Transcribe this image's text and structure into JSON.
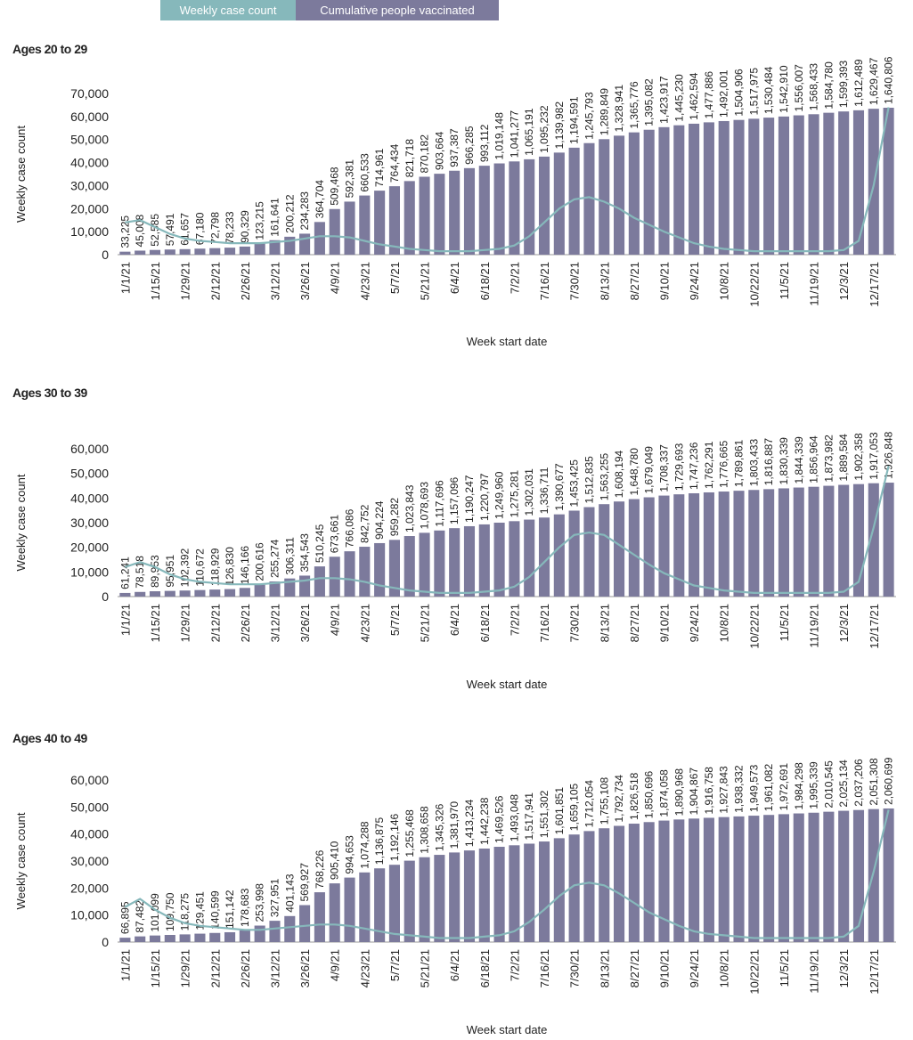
{
  "chart_data": [
    {
      "type": "bar",
      "title": "Ages 20 to 29",
      "x_label": "Week start date",
      "y_label": "Weekly case count",
      "categories": [
        "1/1/21",
        null,
        "1/15/21",
        null,
        "1/29/21",
        null,
        "2/12/21",
        null,
        "2/26/21",
        null,
        "3/12/21",
        null,
        "3/26/21",
        null,
        "4/9/21",
        null,
        "4/23/21",
        null,
        "5/7/21",
        null,
        "5/21/21",
        null,
        "6/4/21",
        null,
        "6/18/21",
        null,
        "7/2/21",
        null,
        "7/16/21",
        null,
        "7/30/21",
        null,
        "8/13/21",
        null,
        "8/27/21",
        null,
        "9/10/21",
        null,
        "9/24/21",
        null,
        "10/8/21",
        null,
        "10/22/21",
        null,
        "11/5/21",
        null,
        "11/19/21",
        null,
        "12/3/21",
        null,
        "12/17/21",
        null
      ],
      "ylim": [
        0,
        70000
      ],
      "yticks": [
        0,
        {
          "value": 10000,
          "label": "10,000"
        },
        {
          "value": 20000,
          "label": "20,000"
        },
        {
          "value": 30000,
          "label": "30,000"
        },
        {
          "value": 40000,
          "label": "40,000"
        },
        {
          "value": 50000,
          "label": "50,000"
        },
        {
          "value": 60000,
          "label": "60,000"
        },
        {
          "value": 70000,
          "label": "70,000"
        }
      ],
      "y2lim": [
        0,
        1800000
      ],
      "series": [
        {
          "name": "Weekly case count",
          "type": "line",
          "color": "#86b8bb",
          "values": [
            14000,
            15000,
            12000,
            9000,
            7000,
            6000,
            5500,
            5000,
            5000,
            5000,
            5500,
            6000,
            7000,
            8000,
            8000,
            7500,
            6000,
            4500,
            3500,
            2500,
            2000,
            1500,
            1500,
            1500,
            2000,
            2500,
            4000,
            8000,
            14000,
            20000,
            24000,
            25000,
            23000,
            20000,
            16000,
            13000,
            10000,
            7500,
            5000,
            3500,
            2500,
            2000,
            1500,
            1500,
            1500,
            1500,
            1500,
            1500,
            2000,
            6000,
            30000,
            64000
          ]
        },
        {
          "name": "Cumulative people vaccinated",
          "type": "bar",
          "axis": "y2",
          "color": "#7c7a9c",
          "values": [
            33225,
            45008,
            52585,
            57491,
            61657,
            67180,
            72798,
            78233,
            90329,
            123215,
            161641,
            200212,
            234283,
            364704,
            509468,
            592381,
            660533,
            714961,
            764434,
            821718,
            870182,
            903664,
            937387,
            966285,
            993112,
            1019148,
            1041277,
            1065191,
            1095232,
            1139982,
            1194591,
            1245793,
            1289849,
            1328941,
            1365776,
            1395082,
            1423917,
            1445230,
            1462594,
            1477886,
            1492001,
            1504906,
            1517975,
            1530484,
            1542910,
            1556007,
            1568433,
            1584780,
            1599393,
            1612489,
            1629467,
            1640806
          ],
          "value_labels": [
            "33,225",
            "45,008",
            "52,585",
            "57,491",
            "61,657",
            "67,180",
            "72,798",
            "78,233",
            "90,329",
            "123,215",
            "161,641",
            "200,212",
            "234,283",
            "364,704",
            "509,468",
            "592,381",
            "660,533",
            "714,961",
            "764,434",
            "821,718",
            "870,182",
            "903,664",
            "937,387",
            "966,285",
            "993,112",
            "1,019,148",
            "1,041,277",
            "1,065,191",
            "1,095,232",
            "1,139,982",
            "1,194,591",
            "1,245,793",
            "1,289,849",
            "1,328,941",
            "1,365,776",
            "1,395,082",
            "1,423,917",
            "1,445,230",
            "1,462,594",
            "1,477,886",
            "1,492,001",
            "1,504,906",
            "1,517,975",
            "1,530,484",
            "1,542,910",
            "1,556,007",
            "1,568,433",
            "1,584,780",
            "1,599,393",
            "1,612,489",
            "1,629,467",
            "1,640,806"
          ]
        }
      ]
    },
    {
      "type": "bar",
      "title": "Ages 30 to 39",
      "x_label": "Week start date",
      "y_label": "Weekly case count",
      "categories": [
        "1/1/21",
        null,
        "1/15/21",
        null,
        "1/29/21",
        null,
        "2/12/21",
        null,
        "2/26/21",
        null,
        "3/12/21",
        null,
        "3/26/21",
        null,
        "4/9/21",
        null,
        "4/23/21",
        null,
        "5/7/21",
        null,
        "5/21/21",
        null,
        "6/4/21",
        null,
        "6/18/21",
        null,
        "7/2/21",
        null,
        "7/16/21",
        null,
        "7/30/21",
        null,
        "8/13/21",
        null,
        "8/27/21",
        null,
        "9/10/21",
        null,
        "9/24/21",
        null,
        "10/8/21",
        null,
        "10/22/21",
        null,
        "11/5/21",
        null,
        "11/19/21",
        null,
        "12/3/21",
        null,
        "12/17/21",
        null
      ],
      "ylim": [
        0,
        60000
      ],
      "yticks": [
        0,
        {
          "value": 10000,
          "label": "10,000"
        },
        {
          "value": 20000,
          "label": "20,000"
        },
        {
          "value": 30000,
          "label": "30,000"
        },
        {
          "value": 40000,
          "label": "40,000"
        },
        {
          "value": 50000,
          "label": "50,000"
        },
        {
          "value": 60000,
          "label": "60,000"
        }
      ],
      "y2lim": [
        0,
        2500000
      ],
      "series": [
        {
          "type": "line",
          "color": "#86b8bb",
          "values": [
            12000,
            14000,
            12000,
            9000,
            7000,
            6000,
            5500,
            5000,
            5000,
            5000,
            5500,
            6000,
            6500,
            7500,
            7500,
            7000,
            6000,
            4500,
            3500,
            2500,
            2000,
            1500,
            1500,
            1500,
            2000,
            2500,
            4000,
            8000,
            14000,
            20000,
            25000,
            26000,
            25000,
            21000,
            17000,
            13000,
            9500,
            7000,
            4500,
            3500,
            2500,
            2000,
            1500,
            1500,
            1500,
            1500,
            1500,
            1500,
            2000,
            6000,
            28000,
            53000
          ]
        },
        {
          "type": "bar",
          "axis": "y2",
          "color": "#7c7a9c",
          "values": [
            61241,
            78518,
            89953,
            95951,
            102392,
            110672,
            118929,
            126830,
            146166,
            200616,
            255274,
            306311,
            354543,
            510245,
            673661,
            766086,
            842752,
            904224,
            959282,
            1023843,
            1078693,
            1117696,
            1157096,
            1190247,
            1220797,
            1249960,
            1275281,
            1302031,
            1336711,
            1390677,
            1453425,
            1512835,
            1563255,
            1608194,
            1648780,
            1679049,
            1708337,
            1729693,
            1747236,
            1762291,
            1776665,
            1789861,
            1803433,
            1816887,
            1830339,
            1844339,
            1856964,
            1873982,
            1889584,
            1902358,
            1917053,
            1926848
          ],
          "value_labels": [
            "61,241",
            "78,518",
            "89,953",
            "95,951",
            "102,392",
            "110,672",
            "118,929",
            "126,830",
            "146,166",
            "200,616",
            "255,274",
            "306,311",
            "354,543",
            "510,245",
            "673,661",
            "766,086",
            "842,752",
            "904,224",
            "959,282",
            "1,023,843",
            "1,078,693",
            "1,117,696",
            "1,157,096",
            "1,190,247",
            "1,220,797",
            "1,249,960",
            "1,275,281",
            "1,302,031",
            "1,336,711",
            "1,390,677",
            "1,453,425",
            "1,512,835",
            "1,563,255",
            "1,608,194",
            "1,648,780",
            "1,679,049",
            "1,708,337",
            "1,729,693",
            "1,747,236",
            "1,762,291",
            "1,776,665",
            "1,789,861",
            "1,803,433",
            "1,816,887",
            "1,830,339",
            "1,844,339",
            "1,856,964",
            "1,873,982",
            "1,889,584",
            "1,902,358",
            "1,917,053",
            "1,926,848"
          ]
        }
      ]
    },
    {
      "type": "bar",
      "title": "Ages 40 to 49",
      "x_label": "Week start date",
      "y_label": "Weekly case count",
      "categories": [
        "1/1/21",
        null,
        "1/15/21",
        null,
        "1/29/21",
        null,
        "2/12/21",
        null,
        "2/26/21",
        null,
        "3/12/21",
        null,
        "3/26/21",
        null,
        "4/9/21",
        null,
        "4/23/21",
        null,
        "5/7/21",
        null,
        "5/21/21",
        null,
        "6/4/21",
        null,
        "6/18/21",
        null,
        "7/2/21",
        null,
        "7/16/21",
        null,
        "7/30/21",
        null,
        "8/13/21",
        null,
        "8/27/21",
        null,
        "9/10/21",
        null,
        "9/24/21",
        null,
        "10/8/21",
        null,
        "10/22/21",
        null,
        "11/5/21",
        null,
        "11/19/21",
        null,
        "12/3/21",
        null,
        "12/17/21",
        null
      ],
      "ylim": [
        0,
        60000
      ],
      "yticks": [
        0,
        {
          "value": 10000,
          "label": "10,000"
        },
        {
          "value": 20000,
          "label": "20,000"
        },
        {
          "value": 30000,
          "label": "30,000"
        },
        {
          "value": 40000,
          "label": "40,000"
        },
        {
          "value": 50000,
          "label": "50,000"
        },
        {
          "value": 60000,
          "label": "60,000"
        }
      ],
      "y2lim": [
        0,
        2500000
      ],
      "series": [
        {
          "type": "line",
          "color": "#86b8bb",
          "values": [
            13000,
            16000,
            12000,
            9000,
            7000,
            6000,
            5500,
            5000,
            4500,
            4500,
            5000,
            5500,
            6000,
            6500,
            6500,
            6000,
            5000,
            4000,
            3000,
            2500,
            2000,
            1500,
            1500,
            1500,
            2000,
            2500,
            4000,
            7500,
            12000,
            17000,
            21000,
            22000,
            21000,
            18000,
            14500,
            11000,
            8500,
            6000,
            4000,
            3000,
            2500,
            2000,
            1500,
            1500,
            1500,
            1500,
            1500,
            1500,
            2000,
            6000,
            26000,
            49000
          ]
        },
        {
          "type": "bar",
          "axis": "y2",
          "color": "#7c7a9c",
          "values": [
            66895,
            87482,
            101099,
            109750,
            118275,
            129451,
            140599,
            151142,
            178683,
            253998,
            327951,
            401143,
            569927,
            768226,
            905410,
            994653,
            1074288,
            1136875,
            1192146,
            1255468,
            1308658,
            1345326,
            1381970,
            1413234,
            1442238,
            1469526,
            1493048,
            1517941,
            1551302,
            1601851,
            1659105,
            1712054,
            1755108,
            1792734,
            1826518,
            1850696,
            1874058,
            1890968,
            1904867,
            1916758,
            1927843,
            1938332,
            1949573,
            1961082,
            1972691,
            1984298,
            1995339,
            2010545,
            2025134,
            2037206,
            2051308,
            2060699
          ],
          "value_labels": [
            "66,895",
            "87,482",
            "101,099",
            "109,750",
            "118,275",
            "129,451",
            "140,599",
            "151,142",
            "178,683",
            "253,998",
            "327,951",
            "401,143",
            "569,927",
            "768,226",
            "905,410",
            "994,653",
            "1,074,288",
            "1,136,875",
            "1,192,146",
            "1,255,468",
            "1,308,658",
            "1,345,326",
            "1,381,970",
            "1,413,234",
            "1,442,238",
            "1,469,526",
            "1,493,048",
            "1,517,941",
            "1,551,302",
            "1,601,851",
            "1,659,105",
            "1,712,054",
            "1,755,108",
            "1,792,734",
            "1,826,518",
            "1,850,696",
            "1,874,058",
            "1,890,968",
            "1,904,867",
            "1,916,758",
            "1,927,843",
            "1,938,332",
            "1,949,573",
            "1,961,082",
            "1,972,691",
            "1,984,298",
            "1,995,339",
            "2,010,545",
            "2,025,134",
            "2,037,206",
            "2,051,308",
            "2,060,699"
          ]
        }
      ]
    }
  ]
}
